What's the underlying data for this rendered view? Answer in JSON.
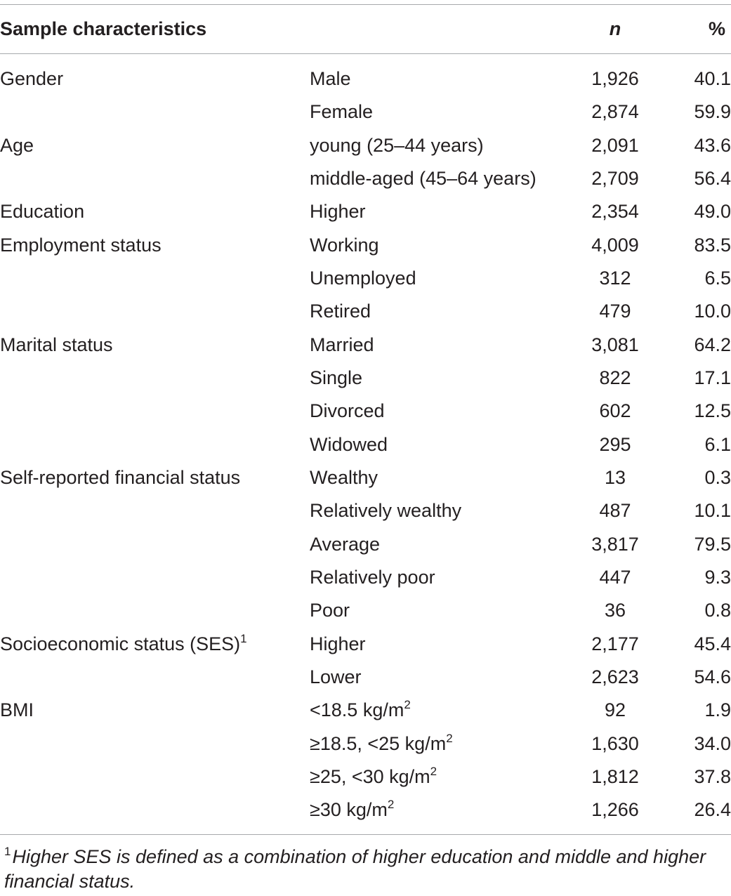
{
  "header": {
    "col1": "Sample characteristics",
    "col3": "n",
    "col4": "%"
  },
  "rows": [
    {
      "characteristic": "Gender",
      "level": "Male",
      "n": "1,926",
      "pct": "40.1"
    },
    {
      "characteristic": "",
      "level": "Female",
      "n": "2,874",
      "pct": "59.9"
    },
    {
      "characteristic": "Age",
      "level": "young (25–44 years)",
      "n": "2,091",
      "pct": "43.6"
    },
    {
      "characteristic": "",
      "level": "middle-aged (45–64 years)",
      "n": "2,709",
      "pct": "56.4"
    },
    {
      "characteristic": "Education",
      "level": "Higher",
      "n": "2,354",
      "pct": "49.0"
    },
    {
      "characteristic": "Employment status",
      "level": "Working",
      "n": "4,009",
      "pct": "83.5"
    },
    {
      "characteristic": "",
      "level": "Unemployed",
      "n": "312",
      "pct": "6.5"
    },
    {
      "characteristic": "",
      "level": "Retired",
      "n": "479",
      "pct": "10.0"
    },
    {
      "characteristic": "Marital status",
      "level": "Married",
      "n": "3,081",
      "pct": "64.2"
    },
    {
      "characteristic": "",
      "level": "Single",
      "n": "822",
      "pct": "17.1"
    },
    {
      "characteristic": "",
      "level": "Divorced",
      "n": "602",
      "pct": "12.5"
    },
    {
      "characteristic": "",
      "level": "Widowed",
      "n": "295",
      "pct": "6.1"
    },
    {
      "characteristic": "Self-reported financial status",
      "level": "Wealthy",
      "n": "13",
      "pct": "0.3"
    },
    {
      "characteristic": "",
      "level": "Relatively wealthy",
      "n": "487",
      "pct": "10.1"
    },
    {
      "characteristic": "",
      "level": "Average",
      "n": "3,817",
      "pct": "79.5"
    },
    {
      "characteristic": "",
      "level": "Relatively poor",
      "n": "447",
      "pct": "9.3"
    },
    {
      "characteristic": "",
      "level": "Poor",
      "n": "36",
      "pct": "0.8"
    },
    {
      "characteristic": "Socioeconomic status (SES)",
      "characteristic_sup": "1",
      "level": "Higher",
      "n": "2,177",
      "pct": "45.4"
    },
    {
      "characteristic": "",
      "level": "Lower",
      "n": "2,623",
      "pct": "54.6"
    },
    {
      "characteristic": "BMI",
      "level": "<18.5 kg/m",
      "level_sup": "2",
      "n": "92",
      "pct": "1.9"
    },
    {
      "characteristic": "",
      "level": "≥18.5,  <25 kg/m",
      "level_sup": "2",
      "n": "1,630",
      "pct": "34.0"
    },
    {
      "characteristic": "",
      "level": "≥25,  <30 kg/m",
      "level_sup": "2",
      "n": "1,812",
      "pct": "37.8"
    },
    {
      "characteristic": "",
      "level": "≥30 kg/m",
      "level_sup": "2",
      "n": "1,266",
      "pct": "26.4"
    }
  ],
  "footnote": {
    "marker": "1",
    "text": "Higher SES is defined as a combination of higher education and middle and higher financial status."
  }
}
